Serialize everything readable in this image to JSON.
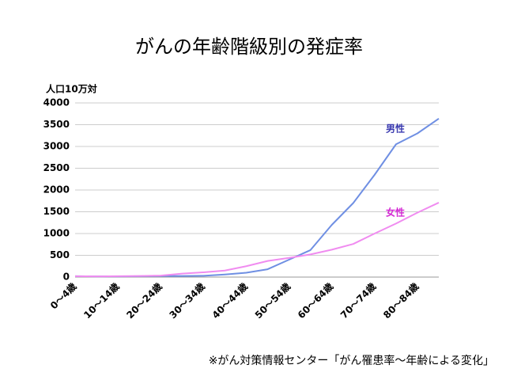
{
  "chart_data": {
    "type": "line",
    "title": "がんの年齢階級別の発症率",
    "y_label": "人口10万対",
    "source": "※がん対策情報センター「がん罹患率～年齢による変化」",
    "categories": [
      "0～4歳",
      null,
      "10～14歳",
      null,
      "20～24歳",
      null,
      "30～34歳",
      null,
      "40～44歳",
      null,
      "50～54歳",
      null,
      "60～64歳",
      null,
      "70～74歳",
      null,
      "80～84歳",
      null
    ],
    "series": [
      {
        "name": "男性",
        "color": "#6f8fe3",
        "label_color": "#3b3bb0",
        "values": [
          20,
          15,
          15,
          20,
          25,
          25,
          30,
          60,
          100,
          180,
          400,
          620,
          1200,
          1700,
          2350,
          3050,
          3300,
          3640
        ]
      },
      {
        "name": "女性",
        "color": "#f08cf0",
        "label_color": "#d42ad4",
        "values": [
          20,
          15,
          20,
          25,
          35,
          80,
          110,
          150,
          250,
          370,
          440,
          520,
          630,
          760,
          1000,
          1230,
          1480,
          1710
        ]
      }
    ],
    "ylim": [
      0,
      4000
    ],
    "yticks": [
      0,
      500,
      1000,
      1500,
      2000,
      2500,
      3000,
      3500,
      4000
    ],
    "grid": true
  }
}
